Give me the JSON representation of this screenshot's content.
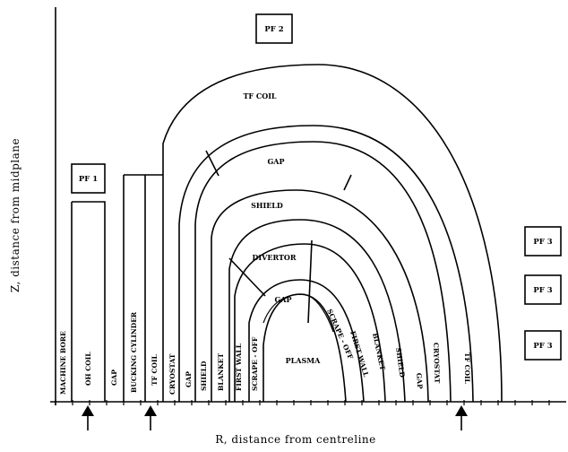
{
  "axes": {
    "x_label": "R, distance from centreline",
    "y_label": "Z, distance from midplane"
  },
  "regions": {
    "tf_coil_outer": "TF COIL",
    "gap_outer": "GAP",
    "shield": "SHIELD",
    "divertor": "DIVERTOR",
    "gap_inner": "GAP",
    "plasma": "PLASMA"
  },
  "pf_coils": {
    "pf1": "PF 1",
    "pf2": "PF 2",
    "pf3_top": "PF 3",
    "pf3_mid": "PF 3",
    "pf3_bot": "PF 3"
  },
  "inboard_layers": [
    "MACHINE BORE",
    "OH COIL",
    "GAP",
    "BUCKING CYLINDER",
    "TF COIL",
    "CRYOSTAT",
    "GAP",
    "SHIELD",
    "BLANKET",
    "FIRST WALL",
    "SCRAPE - OFF"
  ],
  "outboard_layers": [
    "SCRAPE - OFF",
    "FIRST WALL",
    "BLANKET",
    "SHIELD",
    "GAP",
    "CRYOSTAT",
    "TF COIL"
  ],
  "markers": {
    "arrow_count": 3
  }
}
